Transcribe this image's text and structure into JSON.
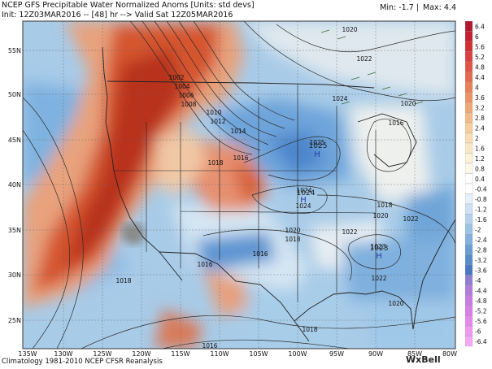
{
  "header": {
    "title": "NCEP GFS Precipitable Water Normalized Anoms [Units: std devs]",
    "init_line": "Init: 12Z03MAR2016 -- [48] hr --> Valid Sat 12Z05MAR2016",
    "min_label": "Min: -1.7",
    "max_label": "Max: 4.4"
  },
  "map": {
    "lat_labels": [
      "55N",
      "50N",
      "45N",
      "40N",
      "35N",
      "30N",
      "25N"
    ],
    "lon_labels": [
      "135W",
      "130W",
      "125W",
      "120W",
      "115W",
      "110W",
      "105W",
      "100W",
      "95W",
      "90W",
      "85W",
      "80W"
    ],
    "isobar_labels": [
      "1020",
      "1022",
      "1024",
      "1020",
      "1016",
      "1002",
      "1004",
      "1006",
      "1008",
      "1010",
      "1012",
      "1014",
      "1018",
      "1016",
      "1025",
      "1024",
      "1024",
      "1018",
      "1020",
      "1022",
      "1020",
      "1018",
      "1022",
      "1023",
      "1016",
      "1016",
      "1018",
      "1022",
      "1020",
      "1018",
      "1016"
    ],
    "pressure_centers": [
      {
        "letter": "H",
        "value": "1025"
      },
      {
        "letter": "H",
        "value": "1024"
      },
      {
        "letter": "H",
        "value": "1023"
      }
    ]
  },
  "colorbar": {
    "values": [
      "6.4",
      "6",
      "5.6",
      "5.2",
      "4.8",
      "4.4",
      "4",
      "3.6",
      "3.2",
      "2.8",
      "2.4",
      "2",
      "1.6",
      "1.2",
      "0.8",
      "0.4",
      "-0.4",
      "-0.8",
      "-1.2",
      "-1.6",
      "-2",
      "-2.4",
      "-2.8",
      "-3.2",
      "-3.6",
      "-4",
      "-4.4",
      "-4.8",
      "-5.2",
      "-5.6",
      "-6",
      "-6.4"
    ],
    "colors": [
      "#b2182b",
      "#c22030",
      "#d03030",
      "#db4040",
      "#e05545",
      "#e56a4d",
      "#e8805a",
      "#ec9468",
      "#f0a878",
      "#f3bb8a",
      "#f6cd9e",
      "#f8ddb2",
      "#f9e9c6",
      "#fbf3d8",
      "#fdf9ea",
      "#ffffff",
      "#ffffff",
      "#e6f0fa",
      "#cfe2f5",
      "#b6d3ee",
      "#9cc3e6",
      "#83b2de",
      "#6b9fd4",
      "#588ccb",
      "#4a78c2",
      "#8f7ed0",
      "#b07ed8",
      "#c77ee0",
      "#d880e6",
      "#e48aec",
      "#ee98f0",
      "#f7a8f5"
    ]
  },
  "footer": {
    "climatology": "Climatology 1981-2010 NCEP CFSR Reanalysis",
    "brand": "WxBell"
  }
}
